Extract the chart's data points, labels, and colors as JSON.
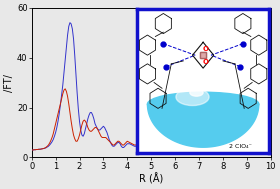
{
  "title": "",
  "xlabel": "R (Å)",
  "ylabel": "/FT/",
  "xlim": [
    0,
    10
  ],
  "ylim": [
    0,
    60
  ],
  "yticks": [
    0,
    20,
    40,
    60
  ],
  "xticks": [
    0,
    1,
    2,
    3,
    4,
    5,
    6,
    7,
    8,
    9,
    10
  ],
  "blue_color": "#3333cc",
  "red_color": "#cc2200",
  "background_color": "#e8e8e8",
  "plot_bg_color": "#e8e8e8",
  "inset_border_color": "#1111cc",
  "inset_bg_color": "#ffffff",
  "inset_text": "2 ClO₄⁻",
  "bowl_color": "#55ccee",
  "bowl_highlight": "#aaeeff",
  "blue_x": [
    0.0,
    0.05,
    0.1,
    0.15,
    0.2,
    0.25,
    0.3,
    0.35,
    0.4,
    0.45,
    0.5,
    0.55,
    0.6,
    0.65,
    0.7,
    0.75,
    0.8,
    0.85,
    0.9,
    0.95,
    1.0,
    1.05,
    1.1,
    1.15,
    1.2,
    1.25,
    1.3,
    1.35,
    1.4,
    1.45,
    1.5,
    1.55,
    1.6,
    1.65,
    1.7,
    1.75,
    1.8,
    1.85,
    1.9,
    1.95,
    2.0,
    2.05,
    2.1,
    2.15,
    2.2,
    2.25,
    2.3,
    2.35,
    2.4,
    2.45,
    2.5,
    2.55,
    2.6,
    2.65,
    2.7,
    2.75,
    2.8,
    2.85,
    2.9,
    2.95,
    3.0,
    3.05,
    3.1,
    3.15,
    3.2,
    3.25,
    3.3,
    3.35,
    3.4,
    3.45,
    3.5,
    3.55,
    3.6,
    3.65,
    3.7,
    3.75,
    3.8,
    3.85,
    3.9,
    3.95,
    4.0,
    4.1,
    4.2,
    4.3,
    4.4,
    4.5,
    4.6,
    4.7,
    4.8,
    4.9,
    5.0,
    5.2,
    5.4,
    5.6,
    5.8,
    6.0,
    6.2,
    6.4,
    6.6,
    6.8,
    7.0,
    7.2,
    7.4,
    7.6,
    7.8,
    8.0,
    8.5,
    9.0,
    9.5,
    10.0
  ],
  "blue_y": [
    3.0,
    3.0,
    3.1,
    3.1,
    3.2,
    3.2,
    3.3,
    3.3,
    3.4,
    3.5,
    3.6,
    3.7,
    3.9,
    4.2,
    4.5,
    5.0,
    5.6,
    6.3,
    7.2,
    8.5,
    10.0,
    12.0,
    14.5,
    17.5,
    21.0,
    25.0,
    29.0,
    34.0,
    39.0,
    44.0,
    49.0,
    52.5,
    54.0,
    53.5,
    51.5,
    47.5,
    41.0,
    33.5,
    26.0,
    19.5,
    14.5,
    11.0,
    9.0,
    8.5,
    9.5,
    11.5,
    13.5,
    15.5,
    17.0,
    18.0,
    18.0,
    17.0,
    15.5,
    13.5,
    12.5,
    11.5,
    11.0,
    11.0,
    11.5,
    12.0,
    12.5,
    12.0,
    11.0,
    10.0,
    8.5,
    7.0,
    6.0,
    5.0,
    4.5,
    4.5,
    5.0,
    5.5,
    6.0,
    6.0,
    5.5,
    4.5,
    4.0,
    4.0,
    4.5,
    5.0,
    5.5,
    5.5,
    5.0,
    4.5,
    4.5,
    5.0,
    5.5,
    5.5,
    5.0,
    4.5,
    4.0,
    3.5,
    3.5,
    4.0,
    4.0,
    3.5,
    3.0,
    3.5,
    4.0,
    3.5,
    3.0,
    3.0,
    3.5,
    4.0,
    3.5,
    3.0,
    3.0,
    3.0,
    3.0,
    3.0
  ],
  "red_x": [
    0.0,
    0.05,
    0.1,
    0.15,
    0.2,
    0.25,
    0.3,
    0.35,
    0.4,
    0.45,
    0.5,
    0.55,
    0.6,
    0.65,
    0.7,
    0.75,
    0.8,
    0.85,
    0.9,
    0.95,
    1.0,
    1.05,
    1.1,
    1.15,
    1.2,
    1.25,
    1.3,
    1.35,
    1.4,
    1.45,
    1.5,
    1.55,
    1.6,
    1.65,
    1.7,
    1.75,
    1.8,
    1.85,
    1.9,
    1.95,
    2.0,
    2.05,
    2.1,
    2.15,
    2.2,
    2.25,
    2.3,
    2.35,
    2.4,
    2.45,
    2.5,
    2.55,
    2.6,
    2.65,
    2.7,
    2.75,
    2.8,
    2.85,
    2.9,
    2.95,
    3.0,
    3.05,
    3.1,
    3.15,
    3.2,
    3.25,
    3.3,
    3.35,
    3.4,
    3.45,
    3.5,
    3.55,
    3.6,
    3.65,
    3.7,
    3.75,
    3.8,
    3.85,
    3.9,
    3.95,
    4.0,
    4.1,
    4.2,
    4.3,
    4.4,
    4.5,
    4.6,
    4.7,
    4.8,
    4.9,
    5.0,
    5.2,
    5.4,
    5.6,
    5.8,
    6.0,
    6.2,
    6.4,
    6.6,
    6.8,
    7.0,
    7.2,
    7.4,
    7.6,
    7.8,
    8.0,
    8.5,
    9.0,
    9.5,
    10.0
  ],
  "red_y": [
    3.0,
    3.0,
    3.1,
    3.1,
    3.2,
    3.2,
    3.3,
    3.3,
    3.4,
    3.5,
    3.6,
    3.8,
    4.1,
    4.5,
    5.0,
    5.8,
    6.8,
    8.0,
    9.5,
    11.5,
    13.5,
    15.5,
    17.5,
    19.5,
    21.5,
    23.5,
    25.5,
    27.0,
    27.5,
    26.5,
    24.5,
    21.5,
    18.0,
    14.5,
    11.5,
    9.0,
    7.5,
    6.5,
    6.5,
    7.5,
    9.0,
    11.0,
    13.0,
    14.5,
    15.0,
    14.5,
    13.5,
    12.0,
    11.0,
    10.5,
    10.5,
    11.0,
    11.5,
    12.0,
    12.0,
    11.5,
    10.5,
    9.5,
    8.5,
    8.0,
    8.0,
    8.0,
    8.0,
    7.5,
    7.0,
    6.5,
    6.0,
    5.5,
    5.0,
    5.0,
    5.5,
    6.0,
    6.5,
    6.5,
    6.0,
    5.5,
    5.0,
    5.0,
    5.5,
    6.0,
    6.5,
    6.0,
    5.5,
    5.0,
    5.0,
    5.5,
    6.0,
    5.5,
    5.0,
    4.5,
    4.0,
    3.5,
    3.5,
    4.0,
    4.0,
    3.5,
    3.0,
    3.5,
    4.0,
    3.5,
    3.0,
    3.0,
    3.5,
    4.0,
    3.5,
    3.0,
    3.0,
    3.0,
    3.0,
    3.0
  ]
}
